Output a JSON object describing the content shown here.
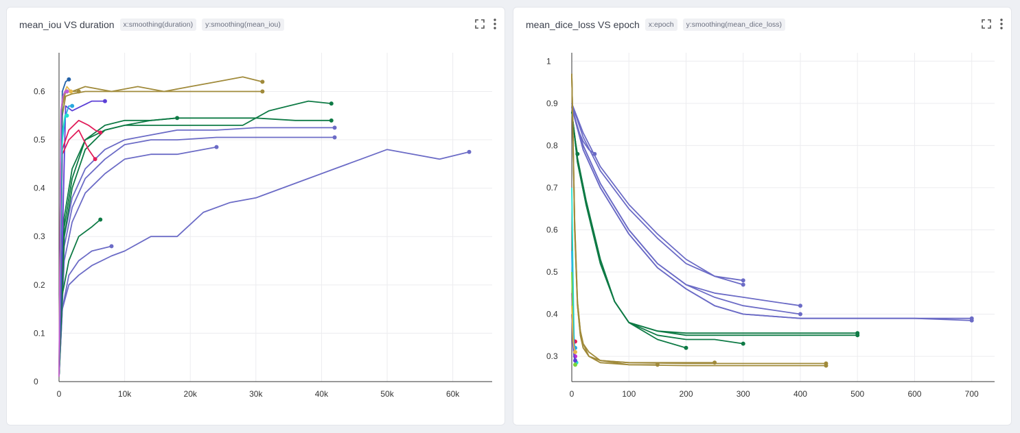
{
  "panels": [
    {
      "title": "mean_iou VS duration",
      "x_tag": "x:smoothing(duration)",
      "y_tag": "y:smoothing(mean_iou)"
    },
    {
      "title": "mean_dice_loss VS epoch",
      "x_tag": "x:epoch",
      "y_tag": "y:smoothing(mean_dice_loss)"
    }
  ],
  "icons": {
    "expand": "fullscreen-icon",
    "more": "more-vertical-icon"
  },
  "chart_data": [
    {
      "type": "line",
      "title": "mean_iou VS duration",
      "xlim": [
        0,
        66000
      ],
      "ylim": [
        0,
        0.68
      ],
      "x_ticks": [
        0,
        10000,
        20000,
        30000,
        40000,
        50000,
        60000
      ],
      "x_tick_labels": [
        "0",
        "10k",
        "20k",
        "30k",
        "40k",
        "50k",
        "60k"
      ],
      "y_ticks": [
        0,
        0.1,
        0.2,
        0.3,
        0.4,
        0.5,
        0.6
      ],
      "y_tick_labels": [
        "0",
        "0.1",
        "0.2",
        "0.3",
        "0.4",
        "0.5",
        "0.6"
      ],
      "grid": true,
      "series": [
        {
          "color": "#6b6bc6",
          "x": [
            0,
            500,
            1500,
            3000,
            5000,
            8000,
            10000,
            14000,
            18000,
            22000,
            26000,
            30000,
            34000,
            38000,
            42000,
            46000,
            50000,
            54000,
            58000,
            62500
          ],
          "y": [
            0.01,
            0.15,
            0.2,
            0.22,
            0.24,
            0.26,
            0.27,
            0.3,
            0.3,
            0.35,
            0.37,
            0.38,
            0.4,
            0.42,
            0.44,
            0.46,
            0.48,
            0.47,
            0.46,
            0.475
          ]
        },
        {
          "color": "#6b6bc6",
          "x": [
            0,
            500,
            1500,
            3000,
            5000,
            8000
          ],
          "y": [
            0.01,
            0.15,
            0.22,
            0.25,
            0.27,
            0.28
          ]
        },
        {
          "color": "#6b6bc6",
          "x": [
            0,
            800,
            2000,
            4000,
            7000,
            10000,
            14000,
            18000,
            24000
          ],
          "y": [
            0.01,
            0.25,
            0.33,
            0.39,
            0.43,
            0.46,
            0.47,
            0.47,
            0.485
          ]
        },
        {
          "color": "#6b6bc6",
          "x": [
            0,
            800,
            2000,
            4000,
            7000,
            10000,
            14000,
            18000,
            24000,
            30000,
            36000,
            42000
          ],
          "y": [
            0.01,
            0.28,
            0.36,
            0.42,
            0.46,
            0.49,
            0.5,
            0.5,
            0.505,
            0.505,
            0.505,
            0.505
          ]
        },
        {
          "color": "#6b6bc6",
          "x": [
            0,
            800,
            2000,
            4000,
            7000,
            10000,
            14000,
            18000,
            24000,
            30000,
            36000,
            42000
          ],
          "y": [
            0.01,
            0.3,
            0.38,
            0.44,
            0.48,
            0.5,
            0.51,
            0.52,
            0.52,
            0.525,
            0.525,
            0.525
          ]
        },
        {
          "color": "#0e7a45",
          "x": [
            0,
            500,
            1500,
            3000,
            5000,
            6300
          ],
          "y": [
            0.01,
            0.18,
            0.25,
            0.3,
            0.32,
            0.335
          ]
        },
        {
          "color": "#0e7a45",
          "x": [
            0,
            800,
            2000,
            4000,
            7000,
            10000,
            14000,
            18000
          ],
          "y": [
            0.01,
            0.3,
            0.4,
            0.48,
            0.52,
            0.53,
            0.54,
            0.545
          ]
        },
        {
          "color": "#0e7a45",
          "x": [
            0,
            800,
            2000,
            4000,
            7000,
            10000,
            14000,
            18000,
            24000,
            30000,
            36000,
            41500
          ],
          "y": [
            0.01,
            0.32,
            0.42,
            0.5,
            0.53,
            0.54,
            0.54,
            0.545,
            0.545,
            0.545,
            0.54,
            0.54
          ]
        },
        {
          "color": "#0e7a45",
          "x": [
            0,
            800,
            2000,
            4000,
            7000,
            10000,
            14000,
            18000,
            24000,
            28000,
            32000,
            35000,
            38000,
            41500
          ],
          "y": [
            0.01,
            0.34,
            0.44,
            0.5,
            0.52,
            0.53,
            0.53,
            0.53,
            0.53,
            0.53,
            0.56,
            0.57,
            0.58,
            0.575
          ]
        },
        {
          "color": "#a08a3a",
          "x": [
            0,
            500,
            1000,
            2000,
            4000,
            8000,
            12000,
            16000,
            20000,
            24000,
            28000,
            31000
          ],
          "y": [
            0.01,
            0.55,
            0.59,
            0.595,
            0.6,
            0.6,
            0.6,
            0.6,
            0.6,
            0.6,
            0.6,
            0.6
          ]
        },
        {
          "color": "#a08a3a",
          "x": [
            0,
            500,
            1000,
            2000,
            4000,
            8000,
            12000,
            16000,
            20000,
            24000,
            28000,
            31000
          ],
          "y": [
            0.01,
            0.58,
            0.6,
            0.6,
            0.61,
            0.6,
            0.61,
            0.6,
            0.61,
            0.62,
            0.63,
            0.62
          ]
        },
        {
          "color": "#a08a3a",
          "x": [
            0,
            500,
            1000,
            2000,
            3000
          ],
          "y": [
            0.01,
            0.57,
            0.6,
            0.6,
            0.6
          ]
        },
        {
          "color": "#5b3fd6",
          "x": [
            0,
            1000,
            2000,
            3500,
            5000,
            7000
          ],
          "y": [
            0.01,
            0.57,
            0.56,
            0.57,
            0.58,
            0.58
          ]
        },
        {
          "color": "#e11d5a",
          "x": [
            0,
            500,
            1500,
            3000,
            4500,
            5500,
            6300
          ],
          "y": [
            0.01,
            0.48,
            0.52,
            0.54,
            0.53,
            0.52,
            0.515
          ]
        },
        {
          "color": "#e11d5a",
          "x": [
            0,
            500,
            1500,
            3000,
            4500,
            5500
          ],
          "y": [
            0.01,
            0.47,
            0.5,
            0.52,
            0.48,
            0.46
          ]
        },
        {
          "color": "#2aa8e0",
          "x": [
            0,
            500,
            1000,
            1500,
            2000
          ],
          "y": [
            0.01,
            0.5,
            0.55,
            0.57,
            0.57
          ]
        },
        {
          "color": "#2563a8",
          "x": [
            0,
            500,
            1000,
            1500
          ],
          "y": [
            0.01,
            0.6,
            0.62,
            0.625
          ]
        },
        {
          "color": "#22e0d0",
          "x": [
            0,
            300,
            600,
            900,
            1200
          ],
          "y": [
            0.01,
            0.45,
            0.52,
            0.55,
            0.55
          ]
        },
        {
          "color": "#7bd33a",
          "x": [
            0,
            300,
            600,
            900,
            1200
          ],
          "y": [
            0.01,
            0.55,
            0.59,
            0.6,
            0.6
          ]
        },
        {
          "color": "#e6b84a",
          "x": [
            0,
            300,
            600,
            900,
            1200,
            1800
          ],
          "y": [
            0.01,
            0.56,
            0.59,
            0.6,
            0.61,
            0.6
          ]
        },
        {
          "color": "#c05cd8",
          "x": [
            0,
            300,
            600,
            900,
            1200
          ],
          "y": [
            0.01,
            0.56,
            0.59,
            0.6,
            0.6
          ]
        }
      ]
    },
    {
      "type": "line",
      "title": "mean_dice_loss VS epoch",
      "xlim": [
        0,
        740
      ],
      "ylim": [
        0.24,
        1.02
      ],
      "x_ticks": [
        0,
        100,
        200,
        300,
        400,
        500,
        600,
        700
      ],
      "x_tick_labels": [
        "0",
        "100",
        "200",
        "300",
        "400",
        "500",
        "600",
        "700"
      ],
      "y_ticks": [
        0.3,
        0.4,
        0.5,
        0.6,
        0.7,
        0.8,
        0.9,
        1
      ],
      "y_tick_labels": [
        "0.3",
        "0.4",
        "0.5",
        "0.6",
        "0.7",
        "0.8",
        "0.9",
        "1"
      ],
      "grid": true,
      "series": [
        {
          "color": "#6b6bc6",
          "x": [
            0,
            10,
            20,
            30,
            40
          ],
          "y": [
            0.9,
            0.84,
            0.81,
            0.79,
            0.78
          ]
        },
        {
          "color": "#6b6bc6",
          "x": [
            0,
            20,
            50,
            100,
            150,
            200,
            250,
            300
          ],
          "y": [
            0.9,
            0.83,
            0.75,
            0.66,
            0.59,
            0.53,
            0.49,
            0.47
          ]
        },
        {
          "color": "#6b6bc6",
          "x": [
            0,
            20,
            50,
            100,
            150,
            200,
            250,
            300
          ],
          "y": [
            0.9,
            0.82,
            0.74,
            0.65,
            0.58,
            0.52,
            0.49,
            0.48
          ]
        },
        {
          "color": "#6b6bc6",
          "x": [
            0,
            20,
            50,
            100,
            150,
            200,
            250,
            300,
            350,
            400
          ],
          "y": [
            0.89,
            0.8,
            0.71,
            0.6,
            0.52,
            0.47,
            0.44,
            0.42,
            0.41,
            0.4
          ]
        },
        {
          "color": "#6b6bc6",
          "x": [
            0,
            20,
            50,
            100,
            150,
            200,
            250,
            300,
            350,
            400
          ],
          "y": [
            0.89,
            0.8,
            0.71,
            0.6,
            0.52,
            0.47,
            0.45,
            0.44,
            0.43,
            0.42
          ]
        },
        {
          "color": "#6b6bc6",
          "x": [
            0,
            20,
            50,
            100,
            150,
            200,
            250,
            300,
            400,
            500,
            600,
            700
          ],
          "y": [
            0.89,
            0.79,
            0.7,
            0.59,
            0.51,
            0.46,
            0.42,
            0.4,
            0.39,
            0.39,
            0.39,
            0.385
          ]
        },
        {
          "color": "#6b6bc6",
          "x": [
            0,
            20,
            50,
            100,
            150,
            200,
            250,
            300,
            400,
            500,
            600,
            700
          ],
          "y": [
            0.89,
            0.79,
            0.7,
            0.59,
            0.51,
            0.46,
            0.42,
            0.4,
            0.39,
            0.39,
            0.39,
            0.39
          ]
        },
        {
          "color": "#0e7a45",
          "x": [
            0,
            10,
            25,
            50,
            75,
            100,
            150,
            200
          ],
          "y": [
            0.88,
            0.76,
            0.66,
            0.52,
            0.43,
            0.38,
            0.34,
            0.32
          ]
        },
        {
          "color": "#0e7a45",
          "x": [
            0,
            10,
            25,
            50,
            75,
            100,
            150,
            200,
            250,
            300
          ],
          "y": [
            0.88,
            0.76,
            0.66,
            0.52,
            0.43,
            0.38,
            0.35,
            0.34,
            0.34,
            0.33
          ]
        },
        {
          "color": "#0e7a45",
          "x": [
            0,
            10,
            25,
            50,
            75,
            100,
            150,
            200,
            300,
            400,
            500
          ],
          "y": [
            0.88,
            0.77,
            0.67,
            0.53,
            0.43,
            0.38,
            0.36,
            0.35,
            0.35,
            0.35,
            0.35
          ]
        },
        {
          "color": "#0e7a45",
          "x": [
            0,
            10,
            25,
            50,
            75,
            100,
            150,
            200,
            300,
            400,
            500
          ],
          "y": [
            0.88,
            0.77,
            0.67,
            0.53,
            0.43,
            0.38,
            0.36,
            0.355,
            0.355,
            0.355,
            0.355
          ]
        },
        {
          "color": "#0e7a45",
          "x": [
            0,
            5,
            10
          ],
          "y": [
            0.88,
            0.82,
            0.78
          ]
        },
        {
          "color": "#a08a3a",
          "x": [
            0,
            5,
            10,
            15,
            20,
            30,
            50,
            100,
            150
          ],
          "y": [
            0.97,
            0.6,
            0.42,
            0.35,
            0.32,
            0.3,
            0.29,
            0.28,
            0.28
          ]
        },
        {
          "color": "#a08a3a",
          "x": [
            0,
            5,
            10,
            15,
            20,
            30,
            50,
            100,
            150,
            200,
            250
          ],
          "y": [
            0.97,
            0.6,
            0.42,
            0.35,
            0.32,
            0.3,
            0.29,
            0.285,
            0.285,
            0.285,
            0.285
          ]
        },
        {
          "color": "#a08a3a",
          "x": [
            0,
            5,
            10,
            15,
            20,
            30,
            50,
            100,
            200,
            300,
            445
          ],
          "y": [
            0.97,
            0.62,
            0.43,
            0.36,
            0.33,
            0.31,
            0.29,
            0.285,
            0.283,
            0.283,
            0.283
          ]
        },
        {
          "color": "#a08a3a",
          "x": [
            0,
            5,
            10,
            15,
            20,
            30,
            50,
            100,
            200,
            300,
            445
          ],
          "y": [
            0.97,
            0.62,
            0.43,
            0.36,
            0.33,
            0.3,
            0.285,
            0.28,
            0.278,
            0.278,
            0.278
          ]
        },
        {
          "color": "#22e0d0",
          "x": [
            0,
            2,
            4,
            6,
            8
          ],
          "y": [
            0.7,
            0.5,
            0.35,
            0.3,
            0.285
          ]
        },
        {
          "color": "#c026d3",
          "x": [
            0,
            2,
            4,
            6
          ],
          "y": [
            0.45,
            0.35,
            0.31,
            0.3
          ]
        },
        {
          "color": "#e11d5a",
          "x": [
            0,
            2,
            4,
            6
          ],
          "y": [
            0.4,
            0.35,
            0.34,
            0.335
          ]
        },
        {
          "color": "#2aa8e0",
          "x": [
            0,
            2,
            4,
            6
          ],
          "y": [
            0.55,
            0.4,
            0.33,
            0.32
          ]
        },
        {
          "color": "#7bd33a",
          "x": [
            0,
            2,
            4,
            6
          ],
          "y": [
            0.5,
            0.35,
            0.3,
            0.28
          ]
        },
        {
          "color": "#5b3fd6",
          "x": [
            0,
            2,
            4,
            6
          ],
          "y": [
            0.4,
            0.33,
            0.3,
            0.29
          ]
        },
        {
          "color": "#e6b84a",
          "x": [
            0,
            2,
            4,
            6
          ],
          "y": [
            0.42,
            0.34,
            0.32,
            0.31
          ]
        }
      ]
    }
  ]
}
